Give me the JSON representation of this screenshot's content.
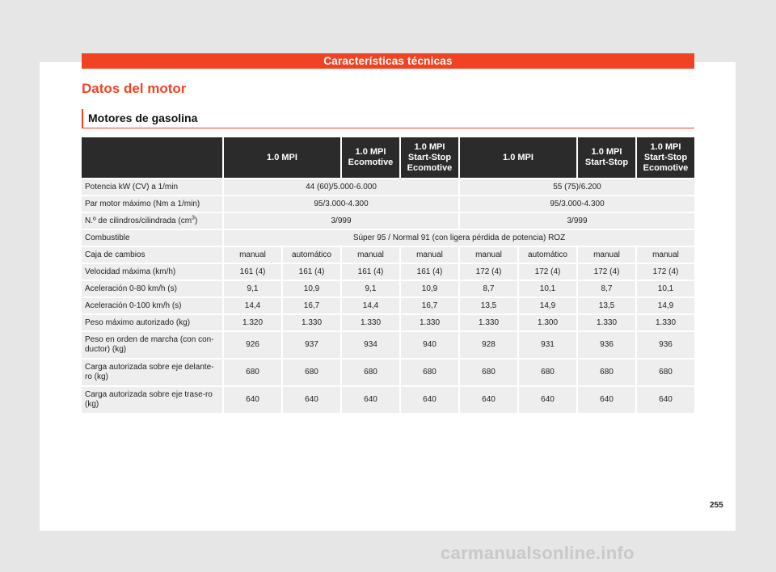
{
  "header": {
    "title": "Características técnicas"
  },
  "section": {
    "title": "Datos del motor",
    "subtitle": "Motores de gasolina"
  },
  "table": {
    "columns": [
      "1.0 MPI",
      "1.0 MPI Ecomotive",
      "1.0 MPI Start-Stop Ecomotive",
      "1.0 MPI",
      "1.0 MPI Start-Stop",
      "1.0 MPI Start-Stop Ecomotive"
    ],
    "rows": {
      "potencia": {
        "label": "Potencia kW (CV) a 1/min",
        "group1": "44 (60)/5.000-6.000",
        "group2": "55 (75)/6.200"
      },
      "par": {
        "label": "Par motor máximo (Nm a 1/min)",
        "group1": "95/3.000-4.300",
        "group2": "95/3.000-4.300"
      },
      "cilindros": {
        "label": "N.º de cilindros/cilindrada (cm",
        "label_sup": "3",
        "label_end": ")",
        "group1": "3/999",
        "group2": "3/999"
      },
      "combustible": {
        "label": "Combustible",
        "value": "Súper 95 / Normal 91 (con ligera pérdida de potencia) ROZ"
      },
      "caja": {
        "label": "Caja de cambios",
        "values": [
          "manual",
          "automático",
          "manual",
          "manual",
          "manual",
          "automático",
          "manual",
          "manual"
        ]
      },
      "velocidad": {
        "label": "Velocidad máxima (km/h)",
        "values": [
          "161 (4)",
          "161 (4)",
          "161 (4)",
          "161 (4)",
          "172 (4)",
          "172 (4)",
          "172 (4)",
          "172 (4)"
        ]
      },
      "acel80": {
        "label": "Aceleración 0-80 km/h (s)",
        "values": [
          "9,1",
          "10,9",
          "9,1",
          "10,9",
          "8,7",
          "10,1",
          "8,7",
          "10,1"
        ]
      },
      "acel100": {
        "label": "Aceleración 0-100 km/h (s)",
        "values": [
          "14,4",
          "16,7",
          "14,4",
          "16,7",
          "13,5",
          "14,9",
          "13,5",
          "14,9"
        ]
      },
      "peso_max": {
        "label": "Peso máximo autorizado (kg)",
        "values": [
          "1.320",
          "1.330",
          "1.330",
          "1.330",
          "1.330",
          "1.300",
          "1.330",
          "1.330"
        ]
      },
      "peso_marcha": {
        "label": "Peso en orden de marcha (con con-ductor) (kg)",
        "values": [
          "926",
          "937",
          "934",
          "940",
          "928",
          "931",
          "936",
          "936"
        ]
      },
      "carga_del": {
        "label": "Carga autorizada sobre eje delante-ro (kg)",
        "values": [
          "680",
          "680",
          "680",
          "680",
          "680",
          "680",
          "680",
          "680"
        ]
      },
      "carga_tras": {
        "label": "Carga autorizada sobre eje trase-ro (kg)",
        "values": [
          "640",
          "640",
          "640",
          "640",
          "640",
          "640",
          "640",
          "640"
        ]
      }
    }
  },
  "page_number": "255",
  "watermark": "carmanualsonline.info",
  "colors": {
    "accent": "#f04323",
    "header_bg": "#2b2b2b",
    "row_bg": "#eeeeee"
  }
}
